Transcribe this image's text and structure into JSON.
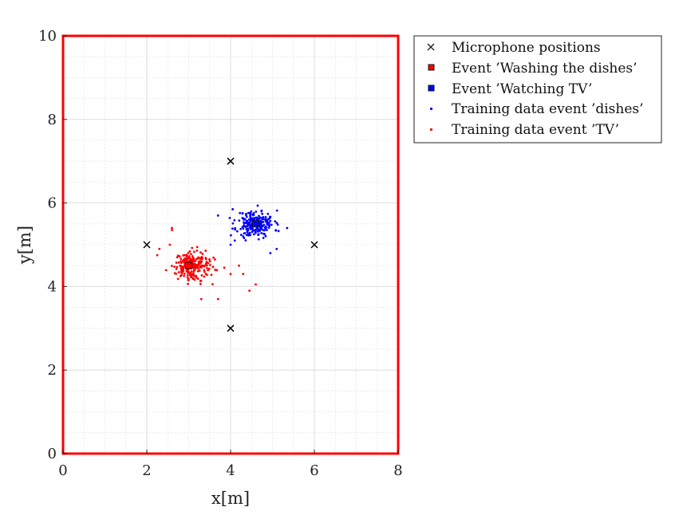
{
  "chart_data": {
    "type": "scatter",
    "xlabel": "x[m]",
    "ylabel": "y[m]",
    "xlim": [
      0,
      8
    ],
    "ylim": [
      0,
      10
    ],
    "xticks": [
      "0",
      "2",
      "4",
      "6",
      "8"
    ],
    "yticks": [
      "0",
      "2",
      "4",
      "6",
      "8",
      "10"
    ],
    "grid": true,
    "minor_grid": true,
    "room_border_color": "#ff0000",
    "legend_position": "outside-top-right",
    "series": [
      {
        "name": "Microphone positions",
        "marker": "x",
        "color": "#000000",
        "points": [
          [
            4,
            7
          ],
          [
            2,
            5
          ],
          [
            6,
            5
          ],
          [
            4,
            3
          ]
        ]
      },
      {
        "name": "Event 'Washing the dishes'",
        "marker": "square",
        "color": "#ff0000",
        "points": [
          [
            3.0,
            4.5
          ]
        ]
      },
      {
        "name": "Event 'Watching TV'",
        "marker": "square",
        "color": "#0000ff",
        "points": [
          [
            4.6,
            5.5
          ]
        ]
      },
      {
        "name": "Training data event 'dishes'",
        "marker": "dot",
        "color": "#0000ff",
        "center": [
          4.6,
          5.5
        ],
        "spread": [
          0.22,
          0.16
        ],
        "count": 220,
        "seed": 11,
        "extra_points": [
          [
            3.7,
            5.7
          ],
          [
            4.0,
            5.0
          ],
          [
            4.1,
            5.1
          ],
          [
            4.05,
            5.85
          ],
          [
            5.1,
            4.9
          ],
          [
            5.35,
            5.4
          ],
          [
            4.95,
            4.8
          ],
          [
            4.3,
            5.2
          ]
        ]
      },
      {
        "name": "Training data event 'TV'",
        "marker": "dot",
        "color": "#ff0000",
        "center": [
          3.05,
          4.5
        ],
        "spread": [
          0.22,
          0.17
        ],
        "count": 230,
        "seed": 29,
        "extra_points": [
          [
            2.6,
            5.4
          ],
          [
            2.25,
            4.75
          ],
          [
            2.3,
            4.9
          ],
          [
            2.55,
            5.0
          ],
          [
            4.45,
            3.9
          ],
          [
            4.6,
            4.05
          ],
          [
            3.7,
            3.7
          ],
          [
            3.3,
            3.7
          ],
          [
            4.2,
            4.5
          ],
          [
            4.0,
            4.3
          ],
          [
            3.85,
            4.45
          ],
          [
            4.3,
            4.3
          ],
          [
            2.6,
            5.35
          ]
        ]
      }
    ],
    "legend": [
      "Microphone positions",
      "Event ’Washing the dishes’",
      "Event ’Watching TV’",
      "Training data event ’dishes’",
      "Training data event ’TV’"
    ]
  }
}
